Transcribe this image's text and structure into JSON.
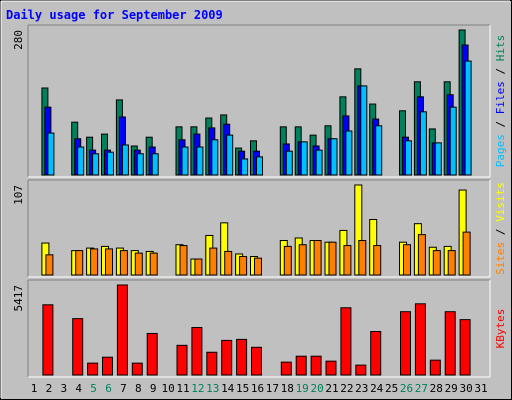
{
  "title": "Daily usage for September 2009",
  "chart_data": [
    {
      "type": "bar",
      "ylim": [
        0,
        280
      ],
      "yticks": [
        280
      ],
      "legend_separator": " / ",
      "series": [
        {
          "name": "Hits",
          "color": "#00805c",
          "values": [
            null,
            168,
            null,
            102,
            73,
            79,
            145,
            56,
            73,
            null,
            93,
            93,
            110,
            116,
            52,
            66,
            null,
            93,
            93,
            77,
            95,
            151,
            205,
            137,
            null,
            124,
            180,
            89,
            180,
            280,
            null
          ]
        },
        {
          "name": "Files",
          "color": "#0000ff",
          "values": [
            null,
            131,
            null,
            70,
            48,
            48,
            112,
            48,
            54,
            null,
            68,
            79,
            91,
            98,
            46,
            46,
            null,
            60,
            64,
            56,
            70,
            114,
            172,
            108,
            null,
            73,
            151,
            62,
            155,
            251,
            null
          ]
        },
        {
          "name": "Pages",
          "color": "#00c0ff",
          "values": [
            null,
            81,
            null,
            54,
            41,
            44,
            58,
            41,
            41,
            null,
            54,
            54,
            68,
            77,
            31,
            35,
            null,
            46,
            64,
            48,
            70,
            85,
            172,
            95,
            null,
            66,
            122,
            62,
            131,
            220,
            null
          ]
        }
      ]
    },
    {
      "type": "bar",
      "ylim": [
        0,
        107
      ],
      "yticks": [
        107
      ],
      "legend_separator": " / ",
      "series": [
        {
          "name": "Visits",
          "color": "#ffff00",
          "values": [
            null,
            38,
            null,
            29,
            32,
            34,
            32,
            29,
            28,
            null,
            36,
            19,
            47,
            62,
            25,
            22,
            null,
            41,
            44,
            41,
            39,
            53,
            107,
            66,
            null,
            39,
            61,
            33,
            34,
            101,
            null
          ]
        },
        {
          "name": "Sites",
          "color": "#ff8000",
          "values": [
            null,
            24,
            null,
            29,
            31,
            31,
            29,
            26,
            26,
            null,
            35,
            19,
            32,
            28,
            22,
            20,
            null,
            34,
            36,
            41,
            39,
            35,
            41,
            35,
            null,
            36,
            48,
            29,
            29,
            51,
            null
          ]
        }
      ]
    },
    {
      "type": "bar",
      "ylim": [
        0,
        5417
      ],
      "yticks": [
        5417
      ],
      "legend_separator": " / ",
      "categories": [
        "1",
        "2",
        "3",
        "4",
        "5",
        "6",
        "7",
        "8",
        "9",
        "10",
        "11",
        "12",
        "13",
        "14",
        "15",
        "16",
        "17",
        "18",
        "19",
        "20",
        "21",
        "22",
        "23",
        "24",
        "25",
        "26",
        "27",
        "28",
        "29",
        "30",
        "31"
      ],
      "category_colors": [
        "#000",
        "#000",
        "#000",
        "#000",
        "#00805c",
        "#00805c",
        "#000",
        "#000",
        "#000",
        "#000",
        "#000",
        "#00805c",
        "#00805c",
        "#000",
        "#000",
        "#000",
        "#000",
        "#000",
        "#00805c",
        "#00805c",
        "#000",
        "#000",
        "#000",
        "#000",
        "#000",
        "#00805c",
        "#00805c",
        "#000",
        "#000",
        "#000",
        "#000"
      ],
      "series": [
        {
          "name": "KBytes",
          "color": "#ff0000",
          "values": [
            null,
            4226,
            null,
            3393,
            714,
            1071,
            5417,
            714,
            2500,
            null,
            1786,
            2857,
            1369,
            2083,
            2143,
            1667,
            null,
            774,
            1131,
            1131,
            833,
            4048,
            595,
            2619,
            null,
            3810,
            4286,
            893,
            3810,
            3333,
            null
          ]
        }
      ]
    }
  ]
}
